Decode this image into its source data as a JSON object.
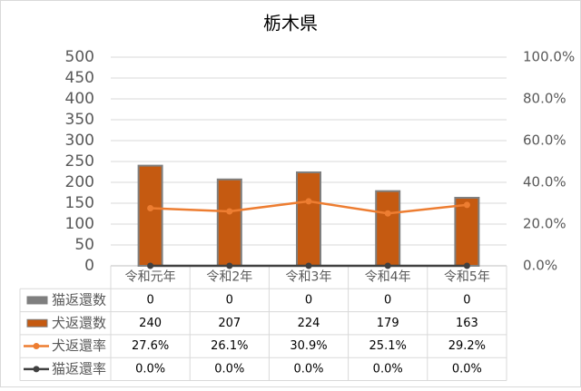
{
  "chart_data": {
    "type": "bar",
    "title": "栃木県",
    "categories": [
      "令和元年",
      "令和2年",
      "令和3年",
      "令和4年",
      "令和5年"
    ],
    "ylim": [
      0,
      500
    ],
    "yticks": [
      0,
      50,
      100,
      150,
      200,
      250,
      300,
      350,
      400,
      450,
      500
    ],
    "y2lim": [
      0,
      100
    ],
    "y2ticks": [
      {
        "value": 0,
        "label": "0.0%"
      },
      {
        "value": 20,
        "label": "20.0%"
      },
      {
        "value": 40,
        "label": "40.0%"
      },
      {
        "value": 60,
        "label": "60.0%"
      },
      {
        "value": 80,
        "label": "80.0%"
      },
      {
        "value": 100,
        "label": "100.0%"
      }
    ],
    "grid": true,
    "series": [
      {
        "name": "猫返還数",
        "type": "bar",
        "color": "#7f7f7f",
        "values": [
          0,
          0,
          0,
          0,
          0
        ]
      },
      {
        "name": "犬返還数",
        "type": "bar",
        "color": "#c55a11",
        "values": [
          240,
          207,
          224,
          179,
          163
        ]
      },
      {
        "name": "犬返還率",
        "type": "line",
        "axis": "y2",
        "color": "#ed7d31",
        "values": [
          27.6,
          26.1,
          30.9,
          25.1,
          29.2
        ],
        "value_labels": [
          "27.6%",
          "26.1%",
          "30.9%",
          "25.1%",
          "29.2%"
        ]
      },
      {
        "name": "猫返還率",
        "type": "line",
        "axis": "y2",
        "color": "#404040",
        "values": [
          0,
          0,
          0,
          0,
          0
        ],
        "value_labels": [
          "0.0%",
          "0.0%",
          "0.0%",
          "0.0%",
          "0.0%"
        ]
      }
    ]
  }
}
